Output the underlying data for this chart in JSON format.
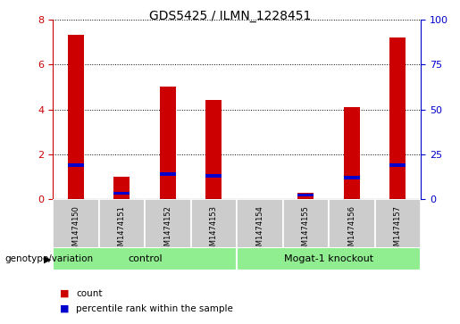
{
  "title": "GDS5425 / ILMN_1228451",
  "categories": [
    "GSM1474150",
    "GSM1474151",
    "GSM1474152",
    "GSM1474153",
    "GSM1474154",
    "GSM1474155",
    "GSM1474156",
    "GSM1474157"
  ],
  "count_values": [
    7.3,
    1.0,
    5.0,
    4.4,
    0.0,
    0.3,
    4.1,
    7.2
  ],
  "percentile_values": [
    19,
    3.5,
    14,
    13,
    0.0,
    2.5,
    12,
    19
  ],
  "groups": [
    {
      "label": "control",
      "indices": [
        0,
        1,
        2,
        3
      ],
      "color": "#90EE90"
    },
    {
      "label": "Mogat-1 knockout",
      "indices": [
        4,
        5,
        6,
        7
      ],
      "color": "#90EE90"
    }
  ],
  "bar_color": "#CC0000",
  "percentile_color": "#0000CC",
  "ylim_left": [
    0,
    8
  ],
  "ylim_right": [
    0,
    100
  ],
  "yticks_left": [
    0,
    2,
    4,
    6,
    8
  ],
  "yticks_right": [
    0,
    25,
    50,
    75,
    100
  ],
  "left_axis_color": "#CC0000",
  "right_axis_color": "#0000CC",
  "bg_color": "#CCCCCC",
  "bar_width": 0.35,
  "genotype_label": "genotype/variation",
  "legend_count": "count",
  "legend_percentile": "percentile rank within the sample",
  "title_fontsize": 10,
  "tick_fontsize": 8,
  "label_fontsize": 7.5
}
